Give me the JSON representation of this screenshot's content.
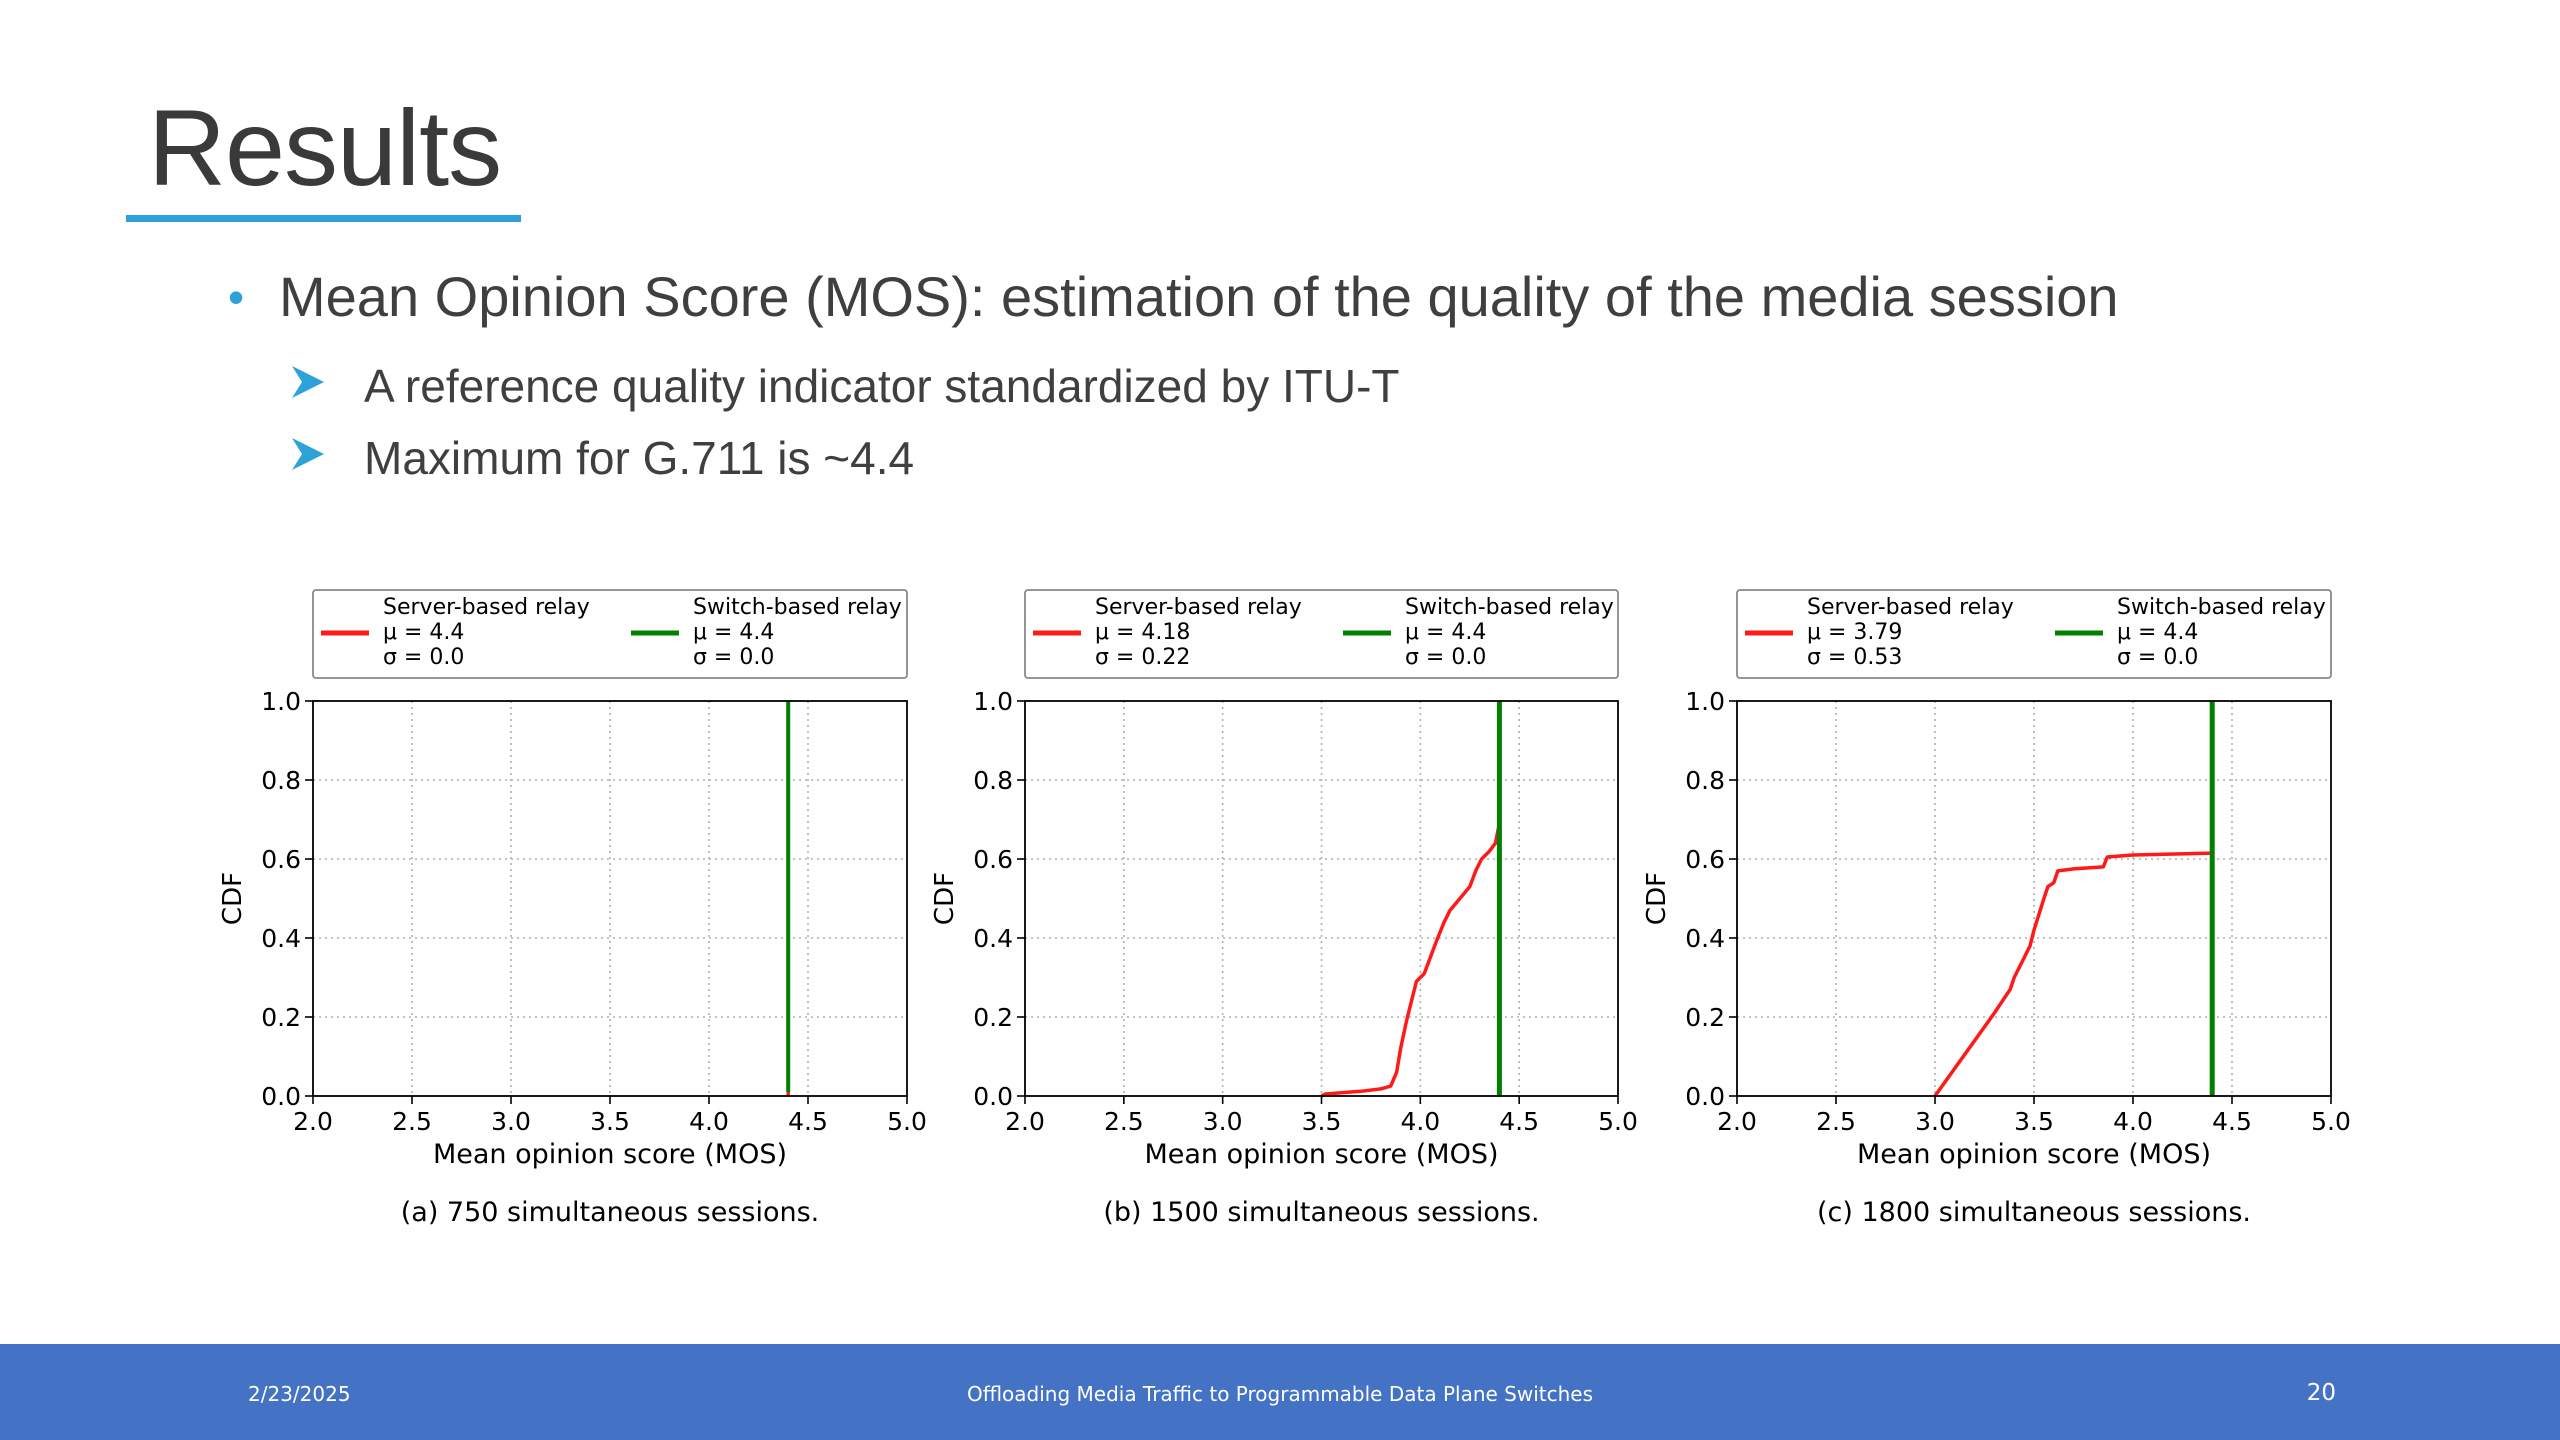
{
  "slide": {
    "title": "Results",
    "bullet": "Mean Opinion Score (MOS): estimation of the quality of the media session",
    "subbullets": [
      "A reference quality indicator standardized by ITU-T",
      "Maximum for G.711 is ~4.4"
    ]
  },
  "footer": {
    "date": "2/23/2025",
    "title": "Offloading Media Traffic to Programmable Data Plane Switches",
    "page": "20"
  },
  "colors": {
    "accent": "#2ea2d8",
    "footer_bg": "#4472c4",
    "server": "#ff1a1a",
    "switch": "#007f00"
  },
  "chart_data": [
    {
      "type": "line",
      "caption": "(a) 750 simultaneous sessions.",
      "xlabel": "Mean opinion score (MOS)",
      "ylabel": "CDF",
      "xlim": [
        2.0,
        5.0
      ],
      "ylim": [
        0.0,
        1.0
      ],
      "xticks": [
        "2.0",
        "2.5",
        "3.0",
        "3.5",
        "4.0",
        "4.5",
        "5.0"
      ],
      "yticks": [
        "0.0",
        "0.2",
        "0.4",
        "0.6",
        "0.8",
        "1.0"
      ],
      "grid": true,
      "legend_position": "top (above plot)",
      "series": [
        {
          "name": "Server-based relay",
          "mu": "μ = 4.4",
          "sigma": "σ = 0.0",
          "color": "#ff1a1a",
          "points": [
            [
              4.4,
              0.0
            ],
            [
              4.4,
              1.0
            ]
          ]
        },
        {
          "name": "Switch-based relay",
          "mu": "μ = 4.4",
          "sigma": "σ = 0.0",
          "color": "#007f00",
          "points": [
            [
              4.4,
              0.01
            ],
            [
              4.4,
              1.0
            ]
          ]
        }
      ]
    },
    {
      "type": "line",
      "caption": "(b) 1500 simultaneous sessions.",
      "xlabel": "Mean opinion score (MOS)",
      "ylabel": "CDF",
      "xlim": [
        2.0,
        5.0
      ],
      "ylim": [
        0.0,
        1.0
      ],
      "xticks": [
        "2.0",
        "2.5",
        "3.0",
        "3.5",
        "4.0",
        "4.5",
        "5.0"
      ],
      "yticks": [
        "0.0",
        "0.2",
        "0.4",
        "0.6",
        "0.8",
        "1.0"
      ],
      "grid": true,
      "legend_position": "top (above plot)",
      "series": [
        {
          "name": "Server-based relay",
          "mu": "μ = 4.18",
          "sigma": "σ = 0.22",
          "color": "#ff1a1a",
          "points": [
            [
              3.5,
              0.0
            ],
            [
              3.52,
              0.005
            ],
            [
              3.6,
              0.008
            ],
            [
              3.7,
              0.012
            ],
            [
              3.8,
              0.018
            ],
            [
              3.85,
              0.025
            ],
            [
              3.88,
              0.06
            ],
            [
              3.9,
              0.12
            ],
            [
              3.93,
              0.19
            ],
            [
              3.96,
              0.25
            ],
            [
              3.98,
              0.29
            ],
            [
              4.0,
              0.3
            ],
            [
              4.02,
              0.31
            ],
            [
              4.05,
              0.35
            ],
            [
              4.08,
              0.39
            ],
            [
              4.12,
              0.44
            ],
            [
              4.15,
              0.47
            ],
            [
              4.2,
              0.5
            ],
            [
              4.25,
              0.53
            ],
            [
              4.28,
              0.57
            ],
            [
              4.31,
              0.6
            ],
            [
              4.35,
              0.62
            ],
            [
              4.38,
              0.64
            ],
            [
              4.4,
              0.69
            ]
          ]
        },
        {
          "name": "Switch-based relay",
          "mu": "μ = 4.4",
          "sigma": "σ = 0.0",
          "color": "#007f00",
          "points": [
            [
              4.4,
              0.0
            ],
            [
              4.4,
              1.0
            ]
          ]
        }
      ]
    },
    {
      "type": "line",
      "caption": "(c) 1800 simultaneous sessions.",
      "xlabel": "Mean opinion score (MOS)",
      "ylabel": "CDF",
      "xlim": [
        2.0,
        5.0
      ],
      "ylim": [
        0.0,
        1.0
      ],
      "xticks": [
        "2.0",
        "2.5",
        "3.0",
        "3.5",
        "4.0",
        "4.5",
        "5.0"
      ],
      "yticks": [
        "0.0",
        "0.2",
        "0.4",
        "0.6",
        "0.8",
        "1.0"
      ],
      "grid": true,
      "legend_position": "top (above plot)",
      "series": [
        {
          "name": "Server-based relay",
          "mu": "μ = 3.79",
          "sigma": "σ = 0.53",
          "color": "#ff1a1a",
          "points": [
            [
              3.0,
              0.0
            ],
            [
              3.1,
              0.07
            ],
            [
              3.2,
              0.14
            ],
            [
              3.3,
              0.21
            ],
            [
              3.38,
              0.27
            ],
            [
              3.4,
              0.3
            ],
            [
              3.45,
              0.35
            ],
            [
              3.48,
              0.38
            ],
            [
              3.5,
              0.42
            ],
            [
              3.55,
              0.5
            ],
            [
              3.57,
              0.53
            ],
            [
              3.6,
              0.54
            ],
            [
              3.62,
              0.57
            ],
            [
              3.7,
              0.575
            ],
            [
              3.85,
              0.58
            ],
            [
              3.87,
              0.605
            ],
            [
              4.0,
              0.61
            ],
            [
              4.4,
              0.615
            ]
          ]
        },
        {
          "name": "Switch-based relay",
          "mu": "μ = 4.4",
          "sigma": "σ = 0.0",
          "color": "#007f00",
          "points": [
            [
              4.4,
              0.0
            ],
            [
              4.4,
              1.0
            ]
          ]
        }
      ]
    }
  ]
}
